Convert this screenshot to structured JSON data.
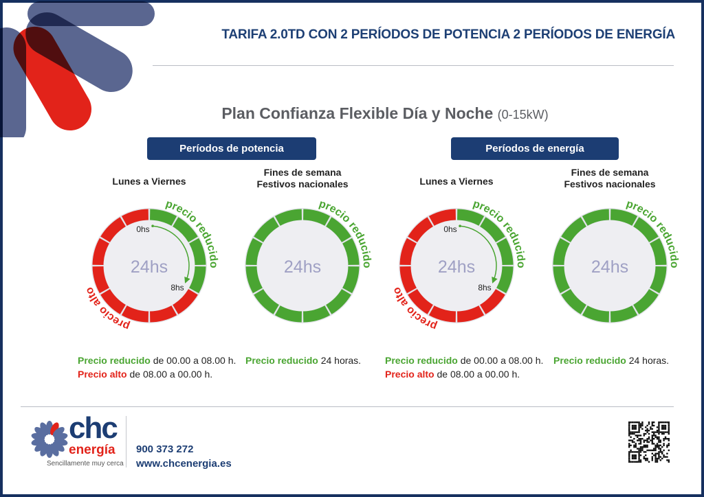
{
  "header": {
    "title": "TARIFA 2.0TD CON 2 PERÍODOS DE POTENCIA 2 PERÍODOS DE ENERGÍA"
  },
  "plan": {
    "name": "Plan Confianza Flexible Día y Noche",
    "range": "(0-15kW)"
  },
  "sections": [
    {
      "label": "Períodos de potencia"
    },
    {
      "label": "Períodos de energía"
    }
  ],
  "columns": [
    {
      "heading": [
        "Lunes a Viernes",
        ""
      ],
      "center": "24hs",
      "reduced_hours": 8,
      "start_label": "0hs",
      "end_label": "8hs",
      "reduced_arc_label": "precio reducido",
      "high_arc_label": "precio alto",
      "legend": [
        {
          "strong": "Precio reducido",
          "rest": " de 00.00 a 08.00 h.",
          "kind": "g"
        },
        {
          "strong": "Precio alto",
          "rest": " de 08.00 a 00.00 h.",
          "kind": "r"
        }
      ]
    },
    {
      "heading": [
        "Fines de semana",
        "Festivos nacionales"
      ],
      "center": "24hs",
      "reduced_hours": 24,
      "reduced_arc_label": "precio reducido",
      "legend": [
        {
          "strong": "Precio reducido",
          "rest": " 24 horas.",
          "kind": "g"
        }
      ]
    },
    {
      "heading": [
        "Lunes a Viernes",
        ""
      ],
      "center": "24hs",
      "reduced_hours": 8,
      "start_label": "0hs",
      "end_label": "8hs",
      "reduced_arc_label": "precio reducido",
      "high_arc_label": "precio alto",
      "legend": [
        {
          "strong": "Precio reducido",
          "rest": " de 00.00 a 08.00 h.",
          "kind": "g"
        },
        {
          "strong": "Precio alto",
          "rest": " de 08.00 a 00.00 h.",
          "kind": "r"
        }
      ]
    },
    {
      "heading": [
        "Fines de semana",
        "Festivos nacionales"
      ],
      "center": "24hs",
      "reduced_hours": 24,
      "reduced_arc_label": "precio reducido",
      "legend": [
        {
          "strong": "Precio reducido",
          "rest": " 24 horas.",
          "kind": "g"
        }
      ]
    }
  ],
  "footer": {
    "brand": "chc",
    "brand_sub": "energía",
    "tagline": "Sencillamente muy cerca",
    "phone": "900 373 272",
    "website": "www.chcenergia.es"
  },
  "colors": {
    "navy": "#1c3d73",
    "green": "#4aa532",
    "red": "#e2231a"
  }
}
